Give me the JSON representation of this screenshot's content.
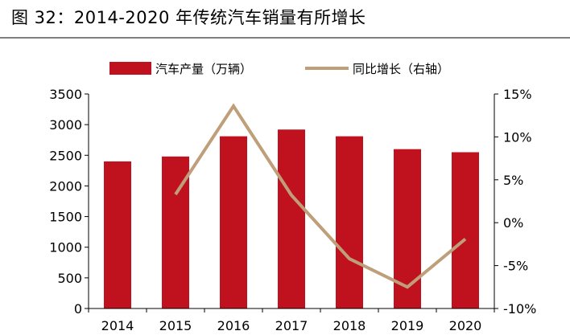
{
  "figure_title": "图 32：2014-2020 年传统汽车销量有所增长",
  "colors": {
    "bar": "#c0111f",
    "line": "#bf9e7a",
    "axis": "#000000",
    "rule": "#7f7f7f"
  },
  "chart_data": {
    "type": "bar",
    "categories": [
      "2014",
      "2015",
      "2016",
      "2017",
      "2018",
      "2019",
      "2020"
    ],
    "series": [
      {
        "name": "汽车产量（万辆）",
        "type": "bar",
        "axis": "left",
        "values": [
          2400,
          2480,
          2810,
          2920,
          2810,
          2600,
          2550
        ]
      },
      {
        "name": "同比增长（右轴）",
        "type": "line",
        "axis": "right",
        "values": [
          null,
          3.3,
          13.6,
          3.2,
          -4.2,
          -7.5,
          -1.9
        ]
      }
    ],
    "y_left": {
      "min": 0,
      "max": 3500,
      "step": 500,
      "tick_labels": [
        "0",
        "500",
        "1000",
        "1500",
        "2000",
        "2500",
        "3000",
        "3500"
      ]
    },
    "y_right": {
      "min": -10,
      "max": 15,
      "step": 5,
      "tick_labels": [
        "-10%",
        "-5%",
        "0%",
        "5%",
        "10%",
        "15%"
      ]
    },
    "legend": {
      "position": "top"
    },
    "grid": false
  }
}
